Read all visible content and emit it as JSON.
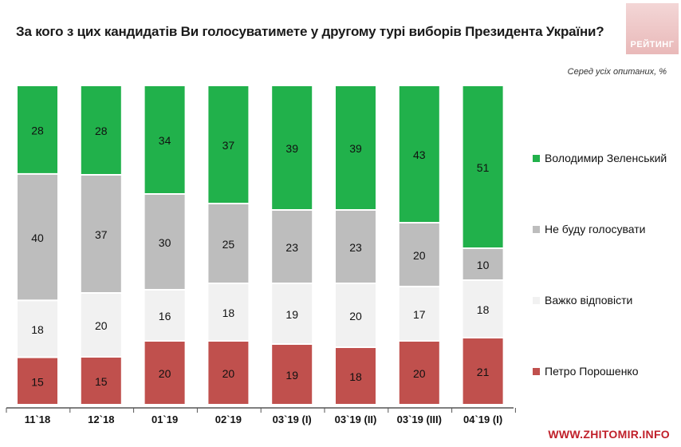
{
  "title": "За кого з цих кандидатів Ви голосуватимете у другому турі виборів Президента України?",
  "subtitle": "Серед усіх опитаних, %",
  "logo_text": "РЕЙТИНГ",
  "watermark": "WWW.ZHITOMIR.INFO",
  "colors": {
    "zelensky": "#21b14b",
    "not_vote": "#bdbdbd",
    "hard_to_say": "#f1f1f1",
    "poroshenko": "#c0504d"
  },
  "chart_data": {
    "type": "bar",
    "stacked": true,
    "title": "За кого з цих кандидатів Ви голосуватимете у другому турі виборів Президента України?",
    "ylabel": "Серед усіх опитаних, %",
    "categories": [
      "11`18",
      "12`18",
      "01`19",
      "02`19",
      "03`19 (I)",
      "03`19 (II)",
      "03`19 (III)",
      "04`19 (I)"
    ],
    "series": [
      {
        "key": "poroshenko",
        "name": "Петро Порошенко",
        "values": [
          15,
          15,
          20,
          20,
          19,
          18,
          20,
          21
        ]
      },
      {
        "key": "hard_to_say",
        "name": "Важко відповісти",
        "values": [
          18,
          20,
          16,
          18,
          19,
          20,
          17,
          18
        ]
      },
      {
        "key": "not_vote",
        "name": "Не буду голосувати",
        "values": [
          40,
          37,
          30,
          25,
          23,
          23,
          20,
          10
        ]
      },
      {
        "key": "zelensky",
        "name": "Володимир Зеленський",
        "values": [
          28,
          28,
          34,
          37,
          39,
          39,
          43,
          51
        ]
      }
    ],
    "legend": [
      {
        "key": "zelensky",
        "name": "Володимир Зеленський"
      },
      {
        "key": "not_vote",
        "name": "Не буду голосувати"
      },
      {
        "key": "hard_to_say",
        "name": "Важко відповісти"
      },
      {
        "key": "poroshenko",
        "name": "Петро Порошенко"
      }
    ]
  }
}
